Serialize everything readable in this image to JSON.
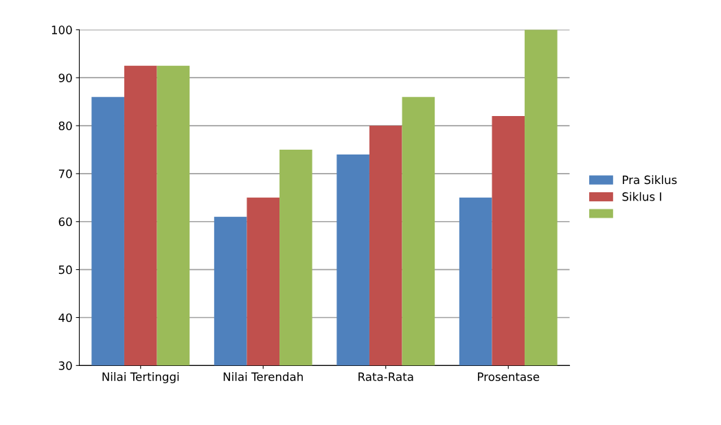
{
  "chart_data": {
    "type": "bar",
    "categories": [
      "Nilai Tertinggi",
      "Nilai Terendah",
      "Rata-Rata",
      "Prosentase"
    ],
    "series": [
      {
        "name": "Pra Siklus",
        "color": "#4f81bd",
        "values": [
          86,
          61,
          74,
          65
        ]
      },
      {
        "name": "Siklus I",
        "color": "#c0504d",
        "values": [
          92.5,
          65,
          80,
          82
        ]
      },
      {
        "color": "#9bbb59",
        "values": [
          92.5,
          75,
          86,
          100
        ]
      }
    ],
    "ylim": [
      30,
      100
    ],
    "yticks": [
      30,
      40,
      50,
      60,
      70,
      80,
      90,
      100
    ],
    "grid": "y",
    "legend": "right"
  }
}
